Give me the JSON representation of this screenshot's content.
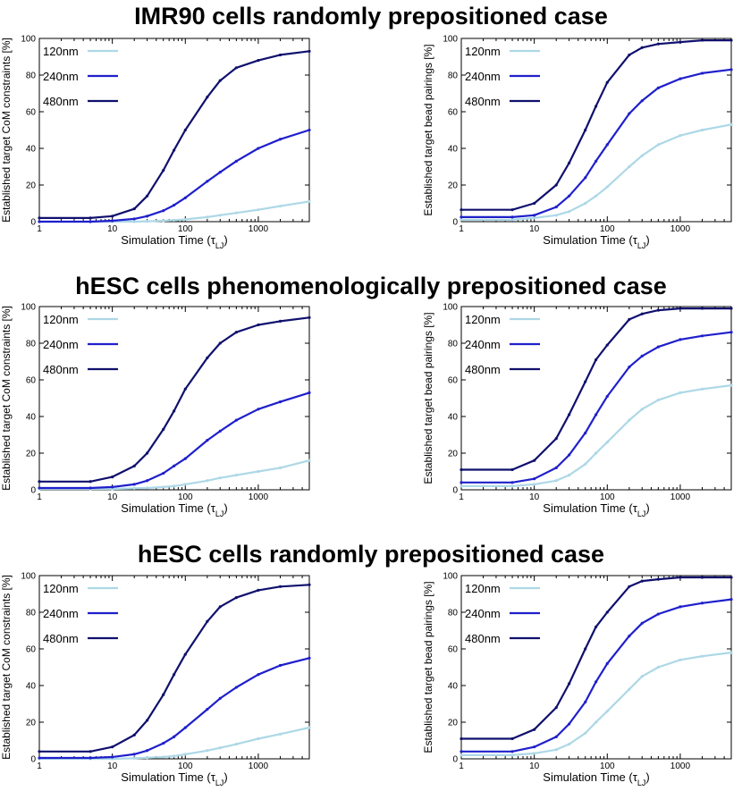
{
  "figure": {
    "sections": [
      {
        "title": "IMR90 cells randomly prepositioned case"
      },
      {
        "title": "hESC cells phenomenologically prepositioned case"
      },
      {
        "title": "hESC cells randomly prepositioned case"
      }
    ]
  },
  "colors": {
    "120nm": "#add8e6",
    "240nm": "#1f1fcc",
    "480nm": "#10106e"
  },
  "chart_data": [
    {
      "type": "line",
      "row": 0,
      "col": 0,
      "title": "IMR90 cells randomly prepositioned case",
      "xlabel": "Simulation Time (τLJ)",
      "x_scale": "log",
      "ylabel": "Established target CoM constraints [%]",
      "xlim": [
        1,
        5000
      ],
      "ylim": [
        0,
        100
      ],
      "xticks": [
        1,
        10,
        100,
        1000
      ],
      "yticks": [
        0,
        20,
        40,
        60,
        80,
        100
      ],
      "x": [
        1,
        5,
        10,
        20,
        30,
        50,
        70,
        100,
        200,
        300,
        500,
        1000,
        2000,
        5000
      ],
      "series": [
        {
          "name": "120nm",
          "color": "#add8e6",
          "values": [
            0,
            0,
            0,
            0,
            0.2,
            0.5,
            0.8,
            1.2,
            2.5,
            3.5,
            4.8,
            6.5,
            8.5,
            11
          ]
        },
        {
          "name": "240nm",
          "color": "#1f1fcc",
          "values": [
            0,
            0,
            0.5,
            1.5,
            3,
            6,
            9,
            13,
            22,
            27,
            33,
            40,
            45,
            50
          ]
        },
        {
          "name": "480nm",
          "color": "#10106e",
          "values": [
            2,
            2,
            3,
            7,
            14,
            28,
            39,
            50,
            68,
            77,
            84,
            88,
            91,
            93
          ]
        }
      ]
    },
    {
      "type": "line",
      "row": 0,
      "col": 1,
      "title": "IMR90 cells randomly prepositioned case",
      "xlabel": "Simulation Time (τLJ)",
      "x_scale": "log",
      "ylabel": "Established target bead pairings [%]",
      "xlim": [
        1,
        5000
      ],
      "ylim": [
        0,
        100
      ],
      "xticks": [
        1,
        10,
        100,
        1000
      ],
      "yticks": [
        0,
        20,
        40,
        60,
        80,
        100
      ],
      "x": [
        1,
        5,
        10,
        20,
        30,
        50,
        70,
        100,
        200,
        300,
        500,
        1000,
        2000,
        5000
      ],
      "series": [
        {
          "name": "120nm",
          "color": "#add8e6",
          "values": [
            1,
            1,
            2,
            3.5,
            5.5,
            10,
            14,
            19,
            30,
            36,
            42,
            47,
            50,
            53
          ]
        },
        {
          "name": "240nm",
          "color": "#1f1fcc",
          "values": [
            2.5,
            2.5,
            3.5,
            8,
            14,
            24,
            33,
            42,
            59,
            66,
            73,
            78,
            81,
            83
          ]
        },
        {
          "name": "480nm",
          "color": "#10106e",
          "values": [
            6.5,
            6.5,
            10,
            20,
            32,
            50,
            63,
            76,
            91,
            95,
            97,
            98,
            99,
            99
          ]
        }
      ]
    },
    {
      "type": "line",
      "row": 1,
      "col": 0,
      "title": "hESC cells phenomenologically prepositioned case",
      "xlabel": "Simulation Time (τLJ)",
      "x_scale": "log",
      "ylabel": "Established target CoM constraints [%]",
      "xlim": [
        1,
        5000
      ],
      "ylim": [
        0,
        100
      ],
      "xticks": [
        1,
        10,
        100,
        1000
      ],
      "yticks": [
        0,
        20,
        40,
        60,
        80,
        100
      ],
      "x": [
        1,
        5,
        10,
        20,
        30,
        50,
        70,
        100,
        200,
        300,
        500,
        1000,
        2000,
        5000
      ],
      "series": [
        {
          "name": "120nm",
          "color": "#add8e6",
          "values": [
            0.5,
            0.5,
            0.5,
            0.8,
            1,
            1.5,
            2,
            3,
            5,
            6.5,
            8,
            10,
            12,
            16
          ]
        },
        {
          "name": "240nm",
          "color": "#1f1fcc",
          "values": [
            1,
            1,
            1.5,
            3,
            5,
            9,
            13,
            17,
            27,
            32,
            38,
            44,
            48,
            53
          ]
        },
        {
          "name": "480nm",
          "color": "#10106e",
          "values": [
            4.5,
            4.5,
            7,
            13,
            20,
            33,
            43,
            55,
            72,
            80,
            86,
            90,
            92,
            94
          ]
        }
      ]
    },
    {
      "type": "line",
      "row": 1,
      "col": 1,
      "title": "hESC cells phenomenologically prepositioned case",
      "xlabel": "Simulation Time (τLJ)",
      "x_scale": "log",
      "ylabel": "Established target bead pairings [%]",
      "xlim": [
        1,
        5000
      ],
      "ylim": [
        0,
        100
      ],
      "xticks": [
        1,
        10,
        100,
        1000
      ],
      "yticks": [
        0,
        20,
        40,
        60,
        80,
        100
      ],
      "x": [
        1,
        5,
        10,
        20,
        30,
        50,
        70,
        100,
        200,
        300,
        500,
        1000,
        2000,
        5000
      ],
      "series": [
        {
          "name": "120nm",
          "color": "#add8e6",
          "values": [
            2,
            2,
            3,
            5,
            8,
            14,
            20,
            26,
            38,
            44,
            49,
            53,
            55,
            57
          ]
        },
        {
          "name": "240nm",
          "color": "#1f1fcc",
          "values": [
            4,
            4,
            6,
            12,
            19,
            31,
            41,
            51,
            67,
            73,
            78,
            82,
            84,
            86
          ]
        },
        {
          "name": "480nm",
          "color": "#10106e",
          "values": [
            11,
            11,
            16,
            28,
            41,
            59,
            71,
            79,
            93,
            96,
            98,
            99,
            99,
            99
          ]
        }
      ]
    },
    {
      "type": "line",
      "row": 2,
      "col": 0,
      "title": "hESC cells randomly prepositioned case",
      "xlabel": "Simulation Time (τLJ)",
      "x_scale": "log",
      "ylabel": "Established target CoM constraints [%]",
      "xlim": [
        1,
        5000
      ],
      "ylim": [
        0,
        100
      ],
      "xticks": [
        1,
        10,
        100,
        1000
      ],
      "yticks": [
        0,
        20,
        40,
        60,
        80,
        100
      ],
      "x": [
        1,
        5,
        10,
        20,
        30,
        50,
        70,
        100,
        200,
        300,
        500,
        1000,
        2000,
        5000
      ],
      "series": [
        {
          "name": "120nm",
          "color": "#add8e6",
          "values": [
            0,
            0,
            0,
            0.3,
            0.6,
            1,
            1.5,
            2.5,
            4.5,
            6,
            8,
            11,
            13.5,
            17
          ]
        },
        {
          "name": "240nm",
          "color": "#1f1fcc",
          "values": [
            0.5,
            0.5,
            1,
            2.5,
            4.5,
            8.5,
            12,
            17,
            27,
            33,
            39,
            46,
            51,
            55
          ]
        },
        {
          "name": "480nm",
          "color": "#10106e",
          "values": [
            4,
            4,
            6.5,
            13,
            21,
            35,
            46,
            57,
            75,
            83,
            88,
            92,
            94,
            95
          ]
        }
      ]
    },
    {
      "type": "line",
      "row": 2,
      "col": 1,
      "title": "hESC cells randomly prepositioned case",
      "xlabel": "Simulation Time (τLJ)",
      "x_scale": "log",
      "ylabel": "Established target bead pairings [%]",
      "xlim": [
        1,
        5000
      ],
      "ylim": [
        0,
        100
      ],
      "xticks": [
        1,
        10,
        100,
        1000
      ],
      "yticks": [
        0,
        20,
        40,
        60,
        80,
        100
      ],
      "x": [
        1,
        5,
        10,
        20,
        30,
        50,
        70,
        100,
        200,
        300,
        500,
        1000,
        2000,
        5000
      ],
      "series": [
        {
          "name": "120nm",
          "color": "#add8e6",
          "values": [
            2,
            2,
            3,
            5,
            8,
            14,
            20,
            26,
            38,
            45,
            50,
            54,
            56,
            58
          ]
        },
        {
          "name": "240nm",
          "color": "#1f1fcc",
          "values": [
            4,
            4,
            6.5,
            12,
            19,
            31,
            42,
            52,
            67,
            74,
            79,
            83,
            85,
            87
          ]
        },
        {
          "name": "480nm",
          "color": "#10106e",
          "values": [
            11,
            11,
            16,
            28,
            41,
            60,
            72,
            80,
            94,
            97,
            98,
            99,
            99,
            99
          ]
        }
      ]
    }
  ]
}
